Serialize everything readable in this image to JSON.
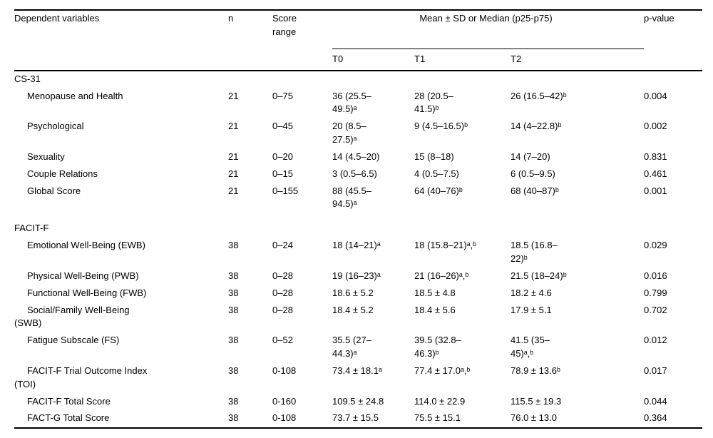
{
  "colors": {
    "background": "#ffffff",
    "text": "#000000",
    "rule": "#000000"
  },
  "table": {
    "header": {
      "dependent_variables": "Dependent variables",
      "n": "n",
      "score_range": "Score\nrange",
      "spanner": "Mean ± SD or Median (p25-p75)",
      "t0": "T0",
      "t1": "T1",
      "t2": "T2",
      "p_value": "p-value"
    },
    "rows": [
      {
        "type": "section",
        "label": "CS-31"
      },
      {
        "type": "data",
        "label": "Menopause and Health",
        "n": "21",
        "range": "0–75",
        "t0": "36 (25.5–\n49.5)ᵃ",
        "t1": "28 (20.5–\n41.5)ᵇ",
        "t2": "26 (16.5–42)ᵇ",
        "p": "0.004"
      },
      {
        "type": "data",
        "label": "Psychological",
        "n": "21",
        "range": "0–45",
        "t0": "20 (8.5–\n27.5)ᵃ",
        "t1": "9 (4.5–16.5)ᵇ",
        "t2": "14 (4–22.8)ᵇ",
        "p": "0.002"
      },
      {
        "type": "data",
        "label": "Sexuality",
        "n": "21",
        "range": "0–20",
        "t0": "14 (4.5–20)",
        "t1": "15 (8–18)",
        "t2": "14 (7–20)",
        "p": "0.831"
      },
      {
        "type": "data",
        "label": "Couple Relations",
        "n": "21",
        "range": "0–15",
        "t0": "3 (0.5–6.5)",
        "t1": "4 (0.5–7.5)",
        "t2": "6 (0.5–9.5)",
        "p": "0.461"
      },
      {
        "type": "data",
        "label": "Global Score",
        "n": "21",
        "range": "0–155",
        "t0": "88 (45.5–\n94.5)ᵃ",
        "t1": "64 (40–76)ᵇ",
        "t2": "68 (40–87)ᵇ",
        "p": "0.001"
      },
      {
        "type": "section",
        "label": "FACIT-F"
      },
      {
        "type": "data",
        "label": "Emotional Well-Being (EWB)",
        "n": "38",
        "range": "0–24",
        "t0": "18 (14–21)ᵃ",
        "t1": "18 (15.8–21)ᵃ,ᵇ",
        "t2": "18.5 (16.8–\n22)ᵇ",
        "p": "0.029"
      },
      {
        "type": "data",
        "label": "Physical Well-Being (PWB)",
        "n": "38",
        "range": "0–28",
        "t0": "19 (16–23)ᵃ",
        "t1": "21 (16–26)ᵃ,ᵇ",
        "t2": "21.5 (18–24)ᵇ",
        "p": "0.016"
      },
      {
        "type": "data",
        "label": "Functional Well-Being (FWB)",
        "n": "38",
        "range": "0–28",
        "t0": "18.6 ± 5.2",
        "t1": "18.5 ± 4.8",
        "t2": "18.2 ± 4.6",
        "p": "0.799"
      },
      {
        "type": "data",
        "label": "Social/Family Well-Being\n(SWB)",
        "n": "38",
        "range": "0–28",
        "t0": "18.4 ± 5.2",
        "t1": "18.4 ± 5.6",
        "t2": "17.9 ± 5.1",
        "p": "0.702"
      },
      {
        "type": "data",
        "label": "Fatigue Subscale (FS)",
        "n": "38",
        "range": "0–52",
        "t0": "35.5 (27–\n44.3)ᵃ",
        "t1": "39.5 (32.8–\n46.3)ᵇ",
        "t2": "41.5 (35–\n45)ᵃ,ᵇ",
        "p": "0.012"
      },
      {
        "type": "data",
        "label": "FACIT-F Trial Outcome Index\n(TOI)",
        "n": "38",
        "range": "0-108",
        "t0": "73.4 ± 18.1ᵃ",
        "t1": "77.4 ± 17.0ᵃ,ᵇ",
        "t2": "78.9 ± 13.6ᵇ",
        "p": "0.017"
      },
      {
        "type": "data",
        "label": "FACIT-F Total Score",
        "n": "38",
        "range": "0-160",
        "t0": "109.5 ± 24.8",
        "t1": "114.0 ± 22.9",
        "t2": "115.5 ± 19.3",
        "p": "0.044"
      },
      {
        "type": "data",
        "label": "FACT-G Total Score",
        "n": "38",
        "range": "0-108",
        "t0": "73.7 ± 15.5",
        "t1": "75.5 ± 15.1",
        "t2": "76.0 ± 13.0",
        "p": "0.364"
      }
    ]
  }
}
